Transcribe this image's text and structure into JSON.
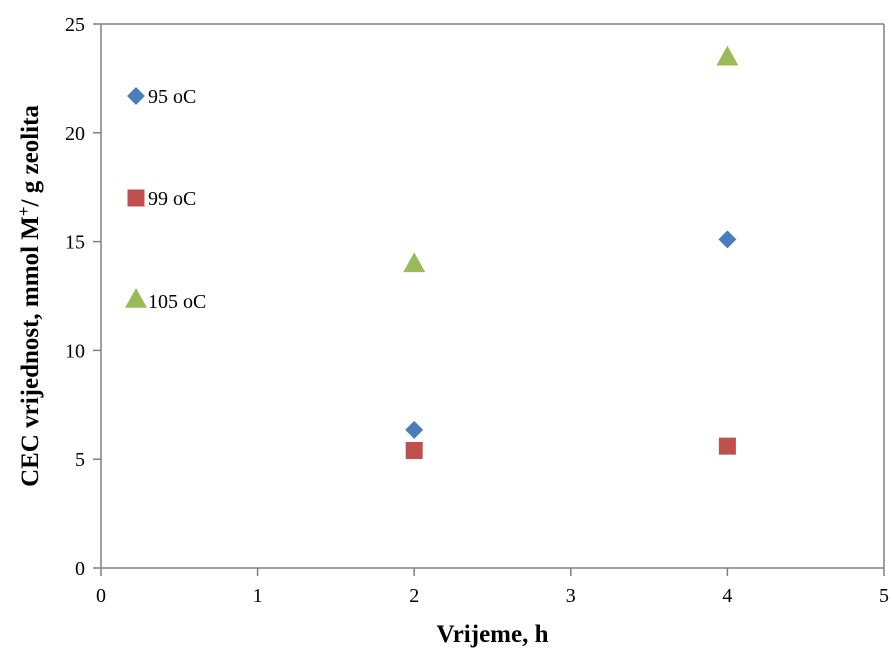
{
  "chart_data": {
    "type": "scatter",
    "xlabel": "Vrijeme, h",
    "ylabel": "CEC vrijednost, mmol M+/ g zeolita",
    "xlim": [
      0,
      5
    ],
    "ylim": [
      0,
      25
    ],
    "xticks": [
      0,
      1,
      2,
      3,
      4,
      5
    ],
    "yticks": [
      0,
      5,
      10,
      15,
      20,
      25
    ],
    "grid": false,
    "legend_position": "left",
    "series": [
      {
        "name": "95 oC",
        "marker": "diamond",
        "color": "#4a7ebb",
        "x": [
          2,
          4
        ],
        "y": [
          6.35,
          15.1
        ]
      },
      {
        "name": "99 oC",
        "marker": "square",
        "color": "#c0504d",
        "x": [
          2,
          4
        ],
        "y": [
          5.4,
          5.6
        ]
      },
      {
        "name": "105 oC",
        "marker": "triangle",
        "color": "#9bbb59",
        "x": [
          2,
          4
        ],
        "y": [
          14.0,
          23.5
        ]
      }
    ]
  }
}
